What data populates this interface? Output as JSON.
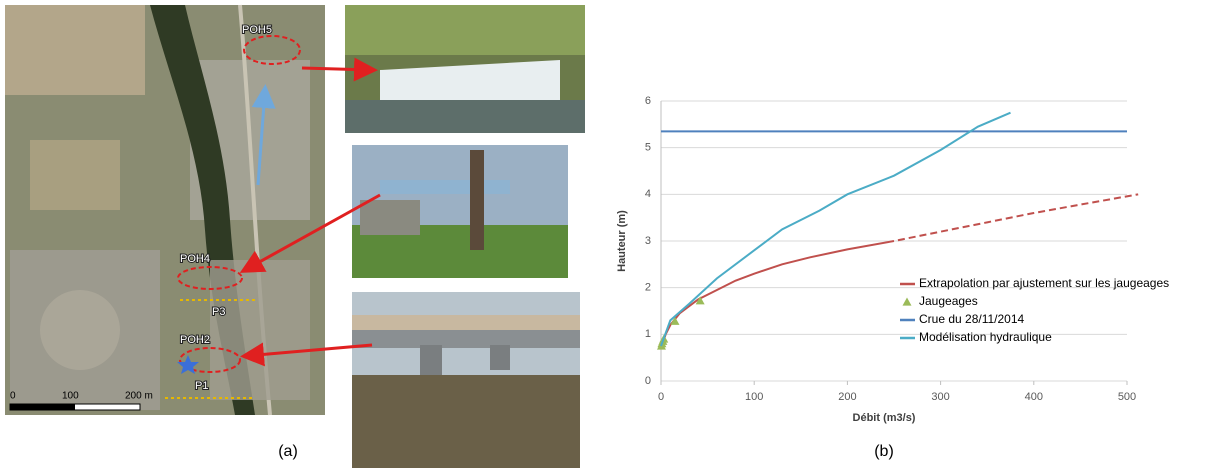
{
  "panel_a": {
    "caption": "(a)",
    "map_labels": [
      "POH5",
      "POH4",
      "P3",
      "POH2",
      "P1"
    ],
    "scale_labels": [
      "0",
      "100",
      "200 m"
    ]
  },
  "chart_data": {
    "type": "line",
    "caption": "(b)",
    "xlabel": "Débit (m3/s)",
    "ylabel": "Hauteur (m)",
    "xlim": [
      0,
      500
    ],
    "xticks": [
      0,
      100,
      200,
      300,
      400,
      500
    ],
    "ylim": [
      0,
      6
    ],
    "yticks": [
      0,
      1,
      2,
      3,
      4,
      5,
      6
    ],
    "grid": true,
    "legend": "right",
    "series": [
      {
        "name": "Extrapolation par ajustement sur les jaugeages",
        "color": "#c0504d",
        "style": "line",
        "dash_from_x": 250,
        "x": [
          1,
          5,
          10,
          20,
          40,
          60,
          80,
          100,
          130,
          160,
          200,
          250,
          300,
          350,
          400,
          450,
          512
        ],
        "values": [
          0.75,
          1.0,
          1.2,
          1.45,
          1.75,
          1.95,
          2.15,
          2.3,
          2.5,
          2.65,
          2.82,
          3.0,
          3.2,
          3.4,
          3.6,
          3.78,
          4.0
        ]
      },
      {
        "name": "Jaugeages",
        "color": "#9bbb59",
        "style": "markers",
        "x": [
          0.5,
          1,
          2,
          3,
          15,
          42
        ],
        "values": [
          0.75,
          0.8,
          0.85,
          0.9,
          1.28,
          1.72
        ]
      },
      {
        "name": "Crue du 28/11/2014",
        "color": "#4f81bd",
        "style": "line",
        "x": [
          0,
          500
        ],
        "values": [
          5.35,
          5.35
        ]
      },
      {
        "name": "Modélisation hydraulique",
        "color": "#4bacc6",
        "style": "line",
        "x": [
          0,
          10,
          30,
          60,
          100,
          130,
          170,
          200,
          250,
          300,
          340,
          375
        ],
        "values": [
          0.75,
          1.3,
          1.65,
          2.2,
          2.8,
          3.25,
          3.65,
          4.0,
          4.4,
          4.95,
          5.45,
          5.75
        ]
      }
    ]
  }
}
